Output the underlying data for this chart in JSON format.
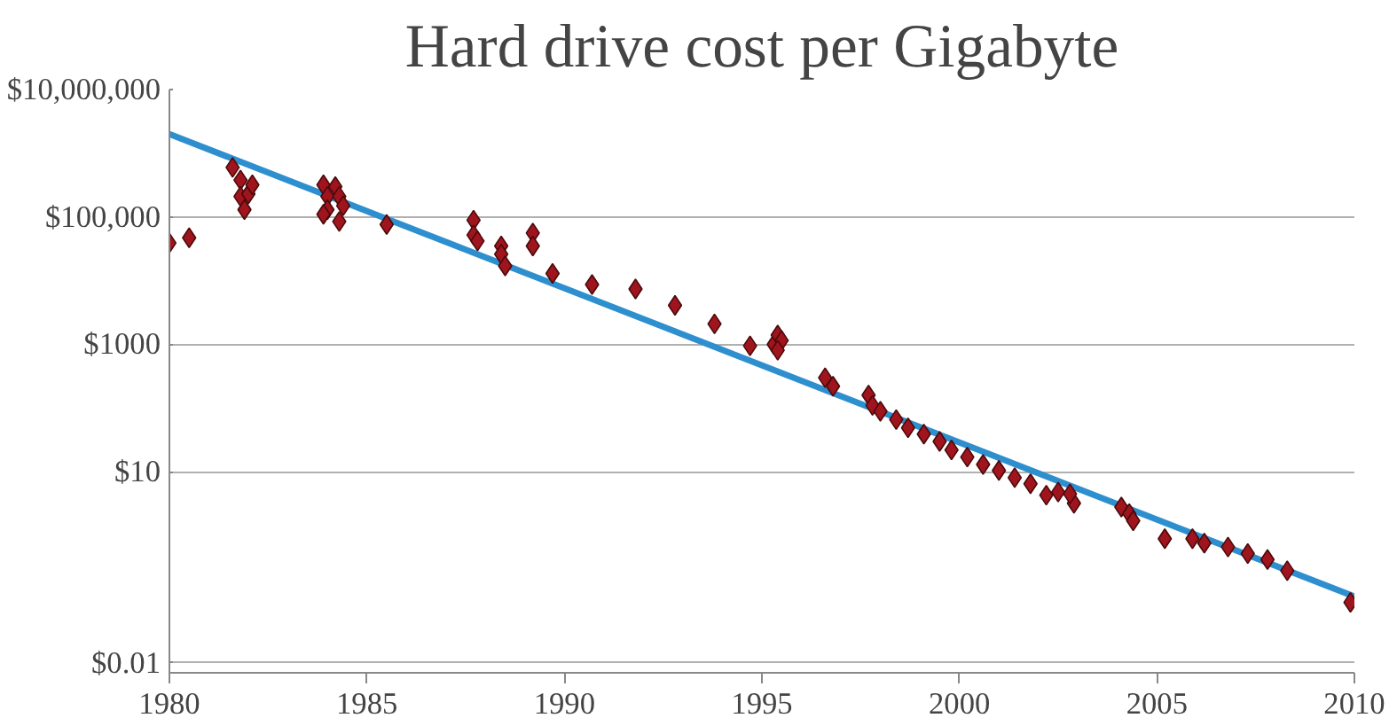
{
  "chart_data": {
    "type": "scatter",
    "title": "Hard drive cost per Gigabyte",
    "log": "y",
    "grid": "y",
    "xlim": [
      1980,
      2010
    ],
    "xticks": [
      1980,
      1985,
      1990,
      1995,
      2000,
      2005,
      2010
    ],
    "ylim": [
      0.007,
      10000000
    ],
    "yticks": [
      {
        "value": 0.01,
        "label": "$0.01"
      },
      {
        "value": 10,
        "label": "$10"
      },
      {
        "value": 1000,
        "label": "$1000"
      },
      {
        "value": 100000,
        "label": "$100,000"
      },
      {
        "value": 10000000,
        "label": "$10,000,000"
      }
    ],
    "series": [
      {
        "color": "#a0141e",
        "marker": "diamond",
        "x": [
          1980.0,
          1980.5,
          1981.6,
          1981.8,
          1981.8,
          1982.0,
          1982.1,
          1981.9,
          1983.9,
          1984.0,
          1984.0,
          1984.2,
          1984.3,
          1984.4,
          1984.3,
          1983.9,
          1985.5,
          1987.7,
          1987.7,
          1987.8,
          1988.4,
          1988.4,
          1988.5,
          1989.2,
          1989.2,
          1989.7,
          1990.7,
          1991.8,
          1992.8,
          1993.8,
          1994.7,
          1995.3,
          1995.4,
          1995.5,
          1995.4,
          1996.6,
          1996.8,
          1997.7,
          1997.8,
          1998.0,
          1998.4,
          1998.7,
          1999.1,
          1999.5,
          1999.8,
          2000.2,
          2000.6,
          2001.0,
          2001.4,
          2001.8,
          2002.2,
          2002.5,
          2002.9,
          2002.8,
          2004.1,
          2004.3,
          2004.4,
          2005.2,
          2005.9,
          2006.2,
          2006.8,
          2007.3,
          2007.8,
          2008.3,
          2009.9
        ],
        "values": [
          39000,
          47000,
          600000,
          380000,
          210000,
          230000,
          320000,
          130000,
          320000,
          210000,
          130000,
          300000,
          210000,
          150000,
          85000,
          110000,
          76000,
          89000,
          52000,
          42000,
          35000,
          26000,
          17000,
          56000,
          35000,
          13000,
          8700,
          7400,
          4100,
          2100,
          950,
          1000,
          1400,
          1150,
          810,
          300,
          220,
          160,
          110,
          89,
          66,
          49,
          39,
          30,
          22,
          17,
          13,
          10.5,
          8.1,
          6.5,
          4.3,
          4.8,
          3.2,
          4.5,
          2.8,
          2.2,
          1.7,
          0.89,
          0.89,
          0.76,
          0.66,
          0.52,
          0.42,
          0.28,
          0.089
        ]
      },
      {
        "type": "line",
        "color": "#2e8fcf",
        "x": [
          1980,
          2010
        ],
        "values": [
          2000000,
          0.11
        ]
      }
    ]
  }
}
